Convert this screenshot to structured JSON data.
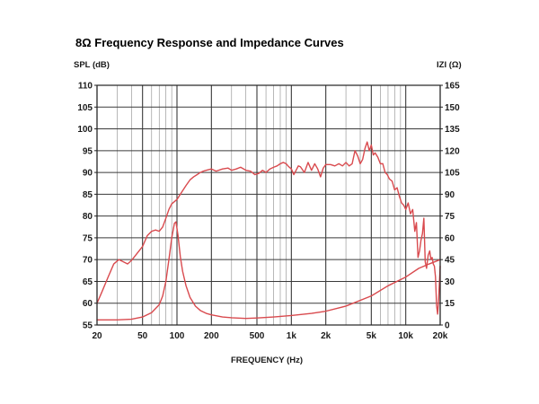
{
  "chart_data": {
    "type": "line",
    "title": "8Ω Frequency Response and Impedance Curves",
    "xlabel": "FREQUENCY (Hz)",
    "ylabel_left": "SPL (dB)",
    "ylabel_right": "IZI (Ω)",
    "xscale": "log",
    "xlim": [
      20,
      20000
    ],
    "ylim_left": [
      55,
      110
    ],
    "ylim_right": [
      0,
      165
    ],
    "grid": true,
    "x_tick_values": [
      20,
      50,
      100,
      200,
      500,
      1000,
      2000,
      5000,
      10000,
      20000
    ],
    "x_tick_labels": [
      "20",
      "50",
      "100",
      "200",
      "500",
      "1k",
      "2k",
      "5k",
      "10k",
      "20k"
    ],
    "y_left_ticks": [
      110,
      105,
      100,
      95,
      90,
      85,
      80,
      75,
      70,
      65,
      60,
      55
    ],
    "y_right_ticks": [
      165,
      150,
      135,
      120,
      105,
      90,
      75,
      60,
      45,
      30,
      15,
      0
    ],
    "series": [
      {
        "name": "Frequency Response (SPL)",
        "axis": "left",
        "color": "#d94a4e",
        "points": [
          [
            20,
            60.0
          ],
          [
            22,
            62.5
          ],
          [
            25,
            66.0
          ],
          [
            28,
            69.0
          ],
          [
            31,
            70.0
          ],
          [
            34,
            69.5
          ],
          [
            37,
            69.0
          ],
          [
            40,
            69.8
          ],
          [
            45,
            71.5
          ],
          [
            50,
            73.0
          ],
          [
            55,
            75.5
          ],
          [
            60,
            76.5
          ],
          [
            65,
            76.8
          ],
          [
            70,
            76.5
          ],
          [
            75,
            77.5
          ],
          [
            80,
            79.5
          ],
          [
            85,
            81.5
          ],
          [
            90,
            82.8
          ],
          [
            100,
            83.8
          ],
          [
            110,
            85.5
          ],
          [
            120,
            87.0
          ],
          [
            130,
            88.3
          ],
          [
            140,
            89.0
          ],
          [
            150,
            89.5
          ],
          [
            160,
            90.0
          ],
          [
            170,
            90.3
          ],
          [
            180,
            90.5
          ],
          [
            200,
            90.8
          ],
          [
            220,
            90.3
          ],
          [
            250,
            90.8
          ],
          [
            280,
            91.0
          ],
          [
            300,
            90.5
          ],
          [
            330,
            90.8
          ],
          [
            360,
            91.2
          ],
          [
            400,
            90.5
          ],
          [
            440,
            90.3
          ],
          [
            480,
            89.5
          ],
          [
            520,
            89.8
          ],
          [
            560,
            90.5
          ],
          [
            600,
            90.0
          ],
          [
            650,
            90.8
          ],
          [
            700,
            91.2
          ],
          [
            750,
            91.5
          ],
          [
            800,
            92.0
          ],
          [
            850,
            92.3
          ],
          [
            900,
            92.0
          ],
          [
            950,
            91.3
          ],
          [
            1000,
            90.8
          ],
          [
            1050,
            89.5
          ],
          [
            1100,
            90.5
          ],
          [
            1150,
            91.5
          ],
          [
            1200,
            91.3
          ],
          [
            1300,
            90.0
          ],
          [
            1400,
            92.3
          ],
          [
            1500,
            90.5
          ],
          [
            1600,
            92.0
          ],
          [
            1700,
            90.8
          ],
          [
            1800,
            89.0
          ],
          [
            1900,
            91.0
          ],
          [
            2000,
            91.8
          ],
          [
            2200,
            91.8
          ],
          [
            2400,
            91.5
          ],
          [
            2600,
            92.0
          ],
          [
            2800,
            91.5
          ],
          [
            3000,
            92.3
          ],
          [
            3200,
            91.5
          ],
          [
            3400,
            92.0
          ],
          [
            3600,
            95.0
          ],
          [
            3800,
            93.8
          ],
          [
            4000,
            92.0
          ],
          [
            4200,
            93.0
          ],
          [
            4400,
            95.5
          ],
          [
            4600,
            97.0
          ],
          [
            4800,
            95.0
          ],
          [
            5000,
            96.3
          ],
          [
            5200,
            94.0
          ],
          [
            5400,
            94.5
          ],
          [
            5700,
            93.5
          ],
          [
            6000,
            92.0
          ],
          [
            6300,
            92.0
          ],
          [
            6600,
            90.0
          ],
          [
            6900,
            89.5
          ],
          [
            7200,
            88.5
          ],
          [
            7600,
            88.0
          ],
          [
            8000,
            86.0
          ],
          [
            8400,
            86.5
          ],
          [
            8800,
            84.5
          ],
          [
            9200,
            83.0
          ],
          [
            9600,
            82.5
          ],
          [
            10000,
            81.5
          ],
          [
            10500,
            83.0
          ],
          [
            11000,
            80.5
          ],
          [
            11500,
            81.5
          ],
          [
            12000,
            76.5
          ],
          [
            12400,
            78.5
          ],
          [
            12800,
            70.5
          ],
          [
            13200,
            72.0
          ],
          [
            13600,
            74.5
          ],
          [
            14000,
            76.0
          ],
          [
            14400,
            79.5
          ],
          [
            14800,
            69.5
          ],
          [
            15200,
            68.0
          ],
          [
            15700,
            71.0
          ],
          [
            16200,
            72.0
          ],
          [
            16600,
            70.0
          ],
          [
            17000,
            70.5
          ],
          [
            17400,
            69.0
          ],
          [
            17800,
            68.5
          ],
          [
            18200,
            66.0
          ],
          [
            18600,
            59.5
          ],
          [
            19000,
            57.5
          ],
          [
            19400,
            61.0
          ],
          [
            20000,
            68.5
          ]
        ]
      },
      {
        "name": "Impedance",
        "axis": "right",
        "color": "#d94a4e",
        "points": [
          [
            20,
            3.5
          ],
          [
            30,
            3.5
          ],
          [
            40,
            4.0
          ],
          [
            50,
            5.5
          ],
          [
            60,
            8.5
          ],
          [
            70,
            14.0
          ],
          [
            75,
            20.0
          ],
          [
            80,
            30.0
          ],
          [
            85,
            45.0
          ],
          [
            90,
            60.0
          ],
          [
            95,
            70.0
          ],
          [
            98,
            71.0
          ],
          [
            102,
            62.0
          ],
          [
            107,
            47.0
          ],
          [
            112,
            37.0
          ],
          [
            120,
            27.0
          ],
          [
            130,
            19.0
          ],
          [
            145,
            13.0
          ],
          [
            160,
            10.0
          ],
          [
            180,
            8.0
          ],
          [
            200,
            7.0
          ],
          [
            250,
            5.5
          ],
          [
            300,
            5.0
          ],
          [
            400,
            4.5
          ],
          [
            500,
            4.8
          ],
          [
            700,
            5.5
          ],
          [
            1000,
            6.5
          ],
          [
            1500,
            8.0
          ],
          [
            2000,
            9.5
          ],
          [
            3000,
            13.0
          ],
          [
            5000,
            20.0
          ],
          [
            7000,
            27.0
          ],
          [
            10000,
            33.0
          ],
          [
            13000,
            39.0
          ],
          [
            16000,
            42.0
          ],
          [
            20000,
            45.0
          ]
        ]
      }
    ]
  }
}
